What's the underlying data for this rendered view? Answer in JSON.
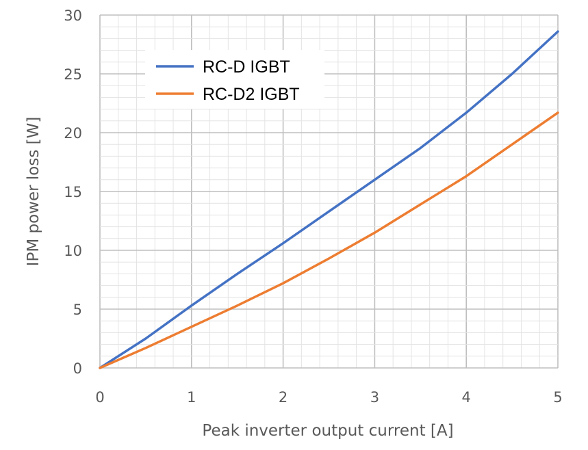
{
  "chart_data": {
    "type": "line",
    "title": "",
    "xlabel": "Peak inverter output current [A]",
    "ylabel": "IPM power loss [W]",
    "xlim": [
      0,
      5
    ],
    "ylim": [
      0,
      30
    ],
    "x_ticks": [
      "0",
      "1",
      "2",
      "3",
      "4",
      "5"
    ],
    "y_ticks": [
      "0",
      "5",
      "10",
      "15",
      "20",
      "25",
      "30"
    ],
    "grid": "on (major and minor)",
    "legend_position": "top-left",
    "series": [
      {
        "name": "RC-D IGBT",
        "color": "#4472c4",
        "x": [
          0,
          0.5,
          1,
          1.5,
          2,
          2.5,
          3,
          3.5,
          4,
          4.5,
          5
        ],
        "y": [
          0,
          2.5,
          5.3,
          8.0,
          10.6,
          13.3,
          16.0,
          18.7,
          21.7,
          25.0,
          28.6
        ]
      },
      {
        "name": "RC-D2 IGBT",
        "color": "#ed7d31",
        "x": [
          0,
          0.5,
          1,
          1.5,
          2,
          2.5,
          3,
          3.5,
          4,
          4.5,
          5
        ],
        "y": [
          0,
          1.7,
          3.5,
          5.3,
          7.2,
          9.3,
          11.5,
          13.9,
          16.3,
          19.0,
          21.7
        ]
      }
    ]
  }
}
